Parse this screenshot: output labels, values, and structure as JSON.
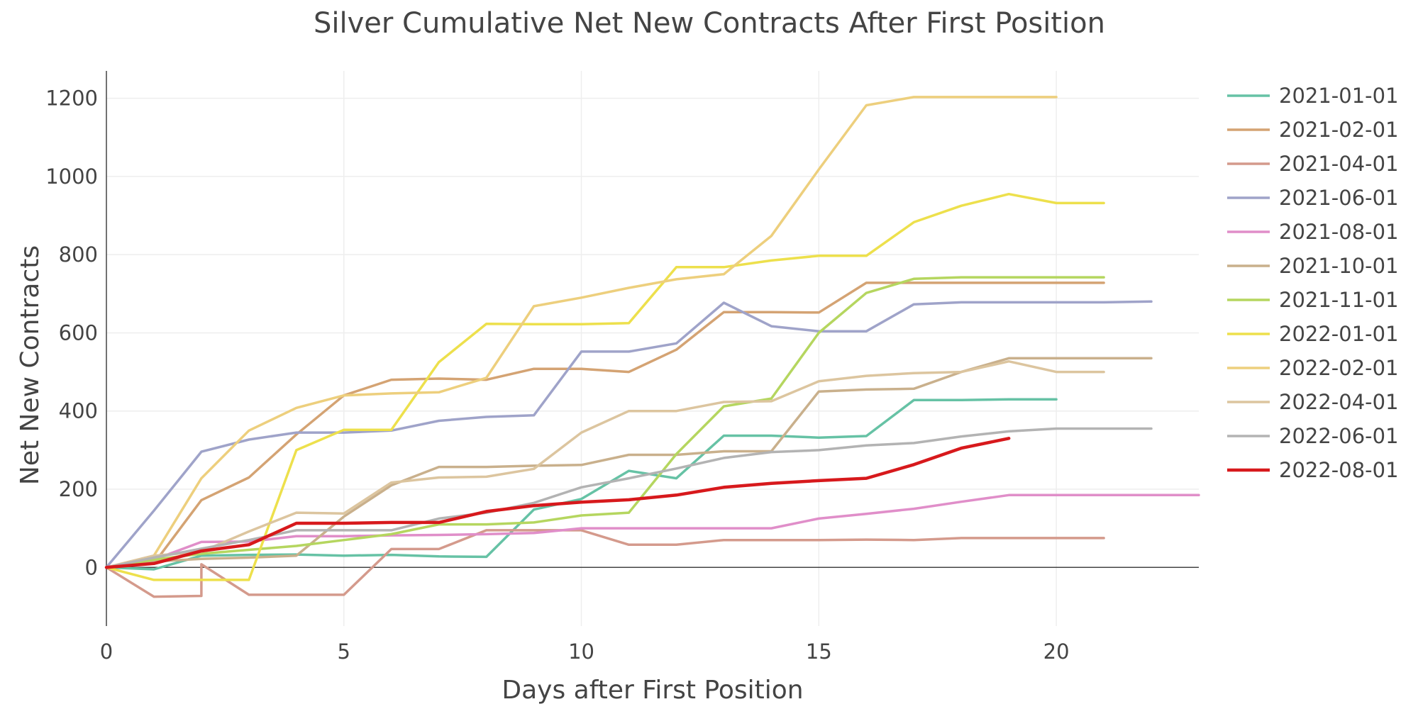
{
  "chart_data": {
    "type": "line",
    "title": "Silver Cumulative Net New Contracts After First Position",
    "xlabel": "Days after First Position",
    "ylabel": "Net New Contracts",
    "xlim": [
      0,
      23
    ],
    "ylim": [
      -150,
      1270
    ],
    "xticks": [
      0,
      5,
      10,
      15,
      20
    ],
    "yticks": [
      0,
      200,
      400,
      600,
      800,
      1000,
      1200
    ],
    "grid": true,
    "legend_position": "right",
    "series": [
      {
        "name": "2021-01-01",
        "color": "#66c2a5",
        "values": [
          [
            0,
            0
          ],
          [
            1,
            -5
          ],
          [
            2,
            30
          ],
          [
            3,
            32
          ],
          [
            4,
            33
          ],
          [
            5,
            30
          ],
          [
            6,
            32
          ],
          [
            7,
            28
          ],
          [
            8,
            27
          ],
          [
            9,
            148
          ],
          [
            10,
            175
          ],
          [
            11,
            247
          ],
          [
            12,
            228
          ],
          [
            13,
            337
          ],
          [
            14,
            337
          ],
          [
            15,
            332
          ],
          [
            16,
            336
          ],
          [
            17,
            428
          ],
          [
            18,
            428
          ],
          [
            19,
            430
          ],
          [
            20,
            430
          ]
        ]
      },
      {
        "name": "2021-02-01",
        "color": "#d4a373",
        "values": [
          [
            0,
            0
          ],
          [
            1,
            10
          ],
          [
            2,
            172
          ],
          [
            3,
            230
          ],
          [
            4,
            340
          ],
          [
            5,
            440
          ],
          [
            6,
            480
          ],
          [
            7,
            483
          ],
          [
            8,
            480
          ],
          [
            9,
            508
          ],
          [
            10,
            508
          ],
          [
            11,
            500
          ],
          [
            12,
            557
          ],
          [
            13,
            653
          ],
          [
            14,
            653
          ],
          [
            15,
            652
          ],
          [
            16,
            728
          ],
          [
            17,
            728
          ],
          [
            18,
            728
          ],
          [
            19,
            728
          ],
          [
            20,
            728
          ],
          [
            21,
            728
          ]
        ]
      },
      {
        "name": "2021-04-01",
        "color": "#d49a8c",
        "values": [
          [
            0,
            0
          ],
          [
            1,
            -75
          ],
          [
            2,
            -73
          ],
          [
            2,
            8
          ],
          [
            3,
            -70
          ],
          [
            4,
            -70
          ],
          [
            5,
            -70
          ],
          [
            6,
            47
          ],
          [
            7,
            47
          ],
          [
            8,
            95
          ],
          [
            9,
            95
          ],
          [
            10,
            95
          ],
          [
            11,
            58
          ],
          [
            12,
            58
          ],
          [
            13,
            70
          ],
          [
            14,
            70
          ],
          [
            15,
            70
          ],
          [
            16,
            71
          ],
          [
            17,
            70
          ],
          [
            18,
            75
          ],
          [
            19,
            75
          ],
          [
            20,
            75
          ],
          [
            21,
            75
          ]
        ]
      },
      {
        "name": "2021-06-01",
        "color": "#9fa3c9",
        "values": [
          [
            0,
            0
          ],
          [
            1,
            145
          ],
          [
            2,
            296
          ],
          [
            3,
            327
          ],
          [
            4,
            345
          ],
          [
            5,
            345
          ],
          [
            6,
            350
          ],
          [
            7,
            375
          ],
          [
            8,
            385
          ],
          [
            9,
            389
          ],
          [
            10,
            552
          ],
          [
            11,
            552
          ],
          [
            12,
            573
          ],
          [
            13,
            677
          ],
          [
            14,
            617
          ],
          [
            15,
            604
          ],
          [
            16,
            604
          ],
          [
            17,
            673
          ],
          [
            18,
            678
          ],
          [
            19,
            678
          ],
          [
            20,
            678
          ],
          [
            21,
            678
          ],
          [
            22,
            680
          ]
        ]
      },
      {
        "name": "2021-08-01",
        "color": "#e08ec9",
        "values": [
          [
            0,
            0
          ],
          [
            1,
            20
          ],
          [
            2,
            65
          ],
          [
            3,
            66
          ],
          [
            4,
            80
          ],
          [
            5,
            80
          ],
          [
            6,
            82
          ],
          [
            7,
            83
          ],
          [
            8,
            85
          ],
          [
            9,
            88
          ],
          [
            10,
            100
          ],
          [
            11,
            100
          ],
          [
            12,
            100
          ],
          [
            13,
            100
          ],
          [
            14,
            100
          ],
          [
            15,
            125
          ],
          [
            16,
            137
          ],
          [
            17,
            150
          ],
          [
            18,
            168
          ],
          [
            19,
            185
          ],
          [
            20,
            185
          ],
          [
            21,
            185
          ],
          [
            22,
            185
          ],
          [
            23,
            185
          ]
        ]
      },
      {
        "name": "2021-10-01",
        "color": "#c9b08c",
        "values": [
          [
            0,
            0
          ],
          [
            1,
            15
          ],
          [
            2,
            22
          ],
          [
            3,
            25
          ],
          [
            4,
            30
          ],
          [
            5,
            130
          ],
          [
            6,
            210
          ],
          [
            7,
            257
          ],
          [
            8,
            257
          ],
          [
            9,
            260
          ],
          [
            10,
            262
          ],
          [
            11,
            288
          ],
          [
            12,
            288
          ],
          [
            13,
            297
          ],
          [
            14,
            297
          ],
          [
            15,
            450
          ],
          [
            16,
            455
          ],
          [
            17,
            457
          ],
          [
            18,
            500
          ],
          [
            19,
            535
          ],
          [
            20,
            535
          ],
          [
            21,
            535
          ],
          [
            22,
            535
          ]
        ]
      },
      {
        "name": "2021-11-01",
        "color": "#b5d65f",
        "values": [
          [
            0,
            0
          ],
          [
            1,
            20
          ],
          [
            2,
            35
          ],
          [
            3,
            45
          ],
          [
            4,
            55
          ],
          [
            5,
            70
          ],
          [
            6,
            85
          ],
          [
            7,
            110
          ],
          [
            8,
            110
          ],
          [
            9,
            115
          ],
          [
            10,
            133
          ],
          [
            11,
            140
          ],
          [
            12,
            290
          ],
          [
            13,
            412
          ],
          [
            14,
            432
          ],
          [
            15,
            600
          ],
          [
            16,
            702
          ],
          [
            17,
            738
          ],
          [
            18,
            742
          ],
          [
            19,
            742
          ],
          [
            20,
            742
          ],
          [
            21,
            742
          ]
        ]
      },
      {
        "name": "2022-01-01",
        "color": "#ede04c",
        "values": [
          [
            0,
            0
          ],
          [
            1,
            -32
          ],
          [
            2,
            -32
          ],
          [
            3,
            -32
          ],
          [
            4,
            300
          ],
          [
            5,
            352
          ],
          [
            6,
            352
          ],
          [
            7,
            525
          ],
          [
            8,
            623
          ],
          [
            9,
            622
          ],
          [
            10,
            622
          ],
          [
            11,
            625
          ],
          [
            12,
            768
          ],
          [
            13,
            768
          ],
          [
            14,
            785
          ],
          [
            15,
            797
          ],
          [
            16,
            797
          ],
          [
            17,
            883
          ],
          [
            18,
            925
          ],
          [
            19,
            955
          ],
          [
            20,
            932
          ],
          [
            21,
            932
          ]
        ]
      },
      {
        "name": "2022-02-01",
        "color": "#edcf7d",
        "values": [
          [
            0,
            0
          ],
          [
            1,
            30
          ],
          [
            2,
            228
          ],
          [
            3,
            350
          ],
          [
            4,
            408
          ],
          [
            5,
            440
          ],
          [
            6,
            445
          ],
          [
            7,
            448
          ],
          [
            8,
            485
          ],
          [
            9,
            668
          ],
          [
            10,
            690
          ],
          [
            11,
            715
          ],
          [
            12,
            737
          ],
          [
            13,
            750
          ],
          [
            14,
            848
          ],
          [
            15,
            1018
          ],
          [
            16,
            1182
          ],
          [
            17,
            1203
          ],
          [
            18,
            1203
          ],
          [
            19,
            1203
          ],
          [
            20,
            1203
          ]
        ]
      },
      {
        "name": "2022-04-01",
        "color": "#dcc59f",
        "values": [
          [
            0,
            0
          ],
          [
            1,
            30
          ],
          [
            2,
            40
          ],
          [
            3,
            92
          ],
          [
            4,
            140
          ],
          [
            5,
            138
          ],
          [
            6,
            217
          ],
          [
            7,
            230
          ],
          [
            8,
            232
          ],
          [
            9,
            252
          ],
          [
            10,
            345
          ],
          [
            11,
            400
          ],
          [
            12,
            400
          ],
          [
            13,
            423
          ],
          [
            14,
            425
          ],
          [
            15,
            476
          ],
          [
            16,
            490
          ],
          [
            17,
            497
          ],
          [
            18,
            500
          ],
          [
            19,
            527
          ],
          [
            20,
            500
          ],
          [
            21,
            500
          ]
        ]
      },
      {
        "name": "2022-06-01",
        "color": "#b3b3b3",
        "values": [
          [
            0,
            0
          ],
          [
            1,
            25
          ],
          [
            2,
            48
          ],
          [
            3,
            70
          ],
          [
            4,
            95
          ],
          [
            5,
            95
          ],
          [
            6,
            95
          ],
          [
            7,
            125
          ],
          [
            8,
            140
          ],
          [
            9,
            165
          ],
          [
            10,
            205
          ],
          [
            11,
            228
          ],
          [
            12,
            253
          ],
          [
            13,
            280
          ],
          [
            14,
            295
          ],
          [
            15,
            300
          ],
          [
            16,
            312
          ],
          [
            17,
            318
          ],
          [
            18,
            335
          ],
          [
            19,
            348
          ],
          [
            20,
            355
          ],
          [
            21,
            355
          ],
          [
            22,
            355
          ]
        ]
      },
      {
        "name": "2022-08-01",
        "color": "#d7191c",
        "highlight": true,
        "values": [
          [
            0,
            0
          ],
          [
            1,
            10
          ],
          [
            2,
            42
          ],
          [
            3,
            58
          ],
          [
            4,
            113
          ],
          [
            5,
            113
          ],
          [
            6,
            115
          ],
          [
            7,
            115
          ],
          [
            8,
            143
          ],
          [
            9,
            158
          ],
          [
            10,
            167
          ],
          [
            11,
            173
          ],
          [
            12,
            185
          ],
          [
            13,
            205
          ],
          [
            14,
            215
          ],
          [
            15,
            222
          ],
          [
            16,
            228
          ],
          [
            17,
            263
          ],
          [
            18,
            305
          ],
          [
            19,
            330
          ]
        ]
      }
    ]
  }
}
